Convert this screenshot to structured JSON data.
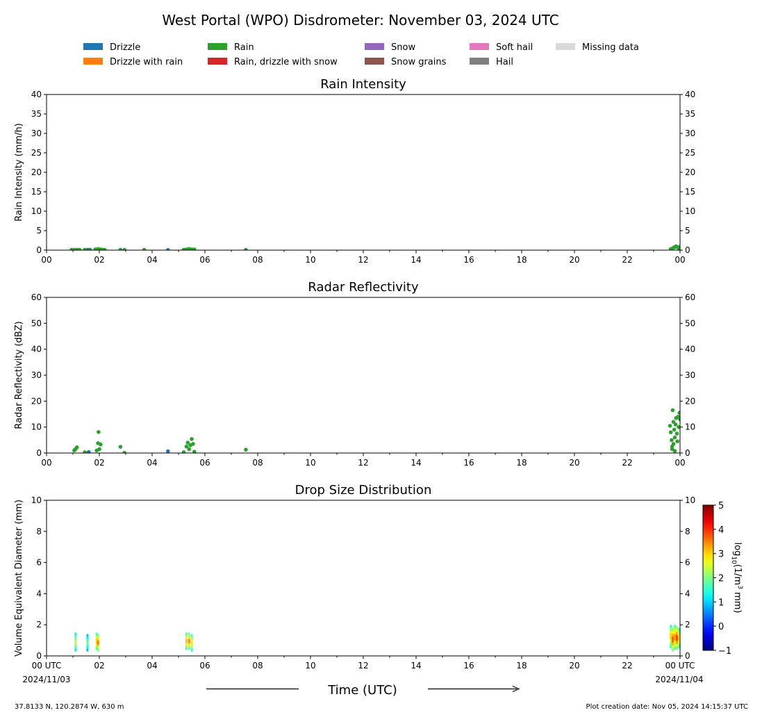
{
  "title": "West Portal (WPO) Disdrometer: November 03, 2024 UTC",
  "legend": {
    "placement": "top",
    "items": [
      {
        "label": "Drizzle",
        "color": "#1f77b4"
      },
      {
        "label": "Drizzle with rain",
        "color": "#ff7f0e"
      },
      {
        "label": "Rain",
        "color": "#2ca02c"
      },
      {
        "label": "Rain, drizzle with snow",
        "color": "#d62728"
      },
      {
        "label": "Snow",
        "color": "#9467bd"
      },
      {
        "label": "Snow grains",
        "color": "#8c564b"
      },
      {
        "label": "Soft hail",
        "color": "#e377c2"
      },
      {
        "label": "Hail",
        "color": "#7f7f7f"
      },
      {
        "label": "Missing data",
        "color": "#d9d9d9"
      }
    ]
  },
  "x_tick_labels": [
    "00",
    "02",
    "04",
    "06",
    "08",
    "10",
    "12",
    "14",
    "16",
    "18",
    "20",
    "22",
    "00"
  ],
  "bottom_x_tick_labels": [
    "00 UTC",
    "02",
    "04",
    "06",
    "08",
    "10",
    "12",
    "14",
    "16",
    "18",
    "20",
    "22",
    "00 UTC"
  ],
  "date_start": "2024/11/03",
  "date_end": "2024/11/04",
  "xlabel": "Time (UTC)",
  "footer_left": "37.8133 N, 120.2874 W, 630 m",
  "footer_right": "Plot creation date: Nov 05, 2024 14:15:37 UTC",
  "colorbar": {
    "label_prefix": "log",
    "label_sub": "10",
    "label_mid": "(1/m",
    "label_sup": "3",
    "label_suffix": " mm)",
    "range": [
      -1,
      5
    ],
    "ticks": [
      "5",
      "4",
      "3",
      "2",
      "1",
      "0",
      "−1"
    ],
    "colormap": "jet"
  },
  "chart_data": [
    {
      "type": "scatter",
      "title": "Rain Intensity",
      "ylabel": "Rain Intensity (mm/h)",
      "xlim": [
        0,
        24
      ],
      "ylim": [
        0,
        40
      ],
      "y_tick_labels": [
        "0",
        "5",
        "10",
        "15",
        "20",
        "25",
        "30",
        "35",
        "40"
      ],
      "grid": false,
      "series": [
        {
          "name": "Rain",
          "color": "#2ca02c",
          "x": [
            0.95,
            1.05,
            1.15,
            1.25,
            1.45,
            1.55,
            1.65,
            1.85,
            1.95,
            2.05,
            2.15,
            2.2,
            2.8,
            2.95,
            3.7,
            5.2,
            5.3,
            5.4,
            5.5,
            5.6,
            7.55,
            23.65,
            23.75,
            23.8,
            23.85,
            23.9,
            23.95,
            24.0
          ],
          "y": [
            0.1,
            0.1,
            0.1,
            0.1,
            0.1,
            0.1,
            0.1,
            0.2,
            0.3,
            0.2,
            0.1,
            0.1,
            0.1,
            0.1,
            0.1,
            0.1,
            0.2,
            0.3,
            0.2,
            0.2,
            0.1,
            0.3,
            0.6,
            0.8,
            1.0,
            0.7,
            0.5,
            0.9
          ]
        },
        {
          "name": "Drizzle",
          "color": "#1f77b4",
          "x": [
            1.6,
            4.6
          ],
          "y": [
            0.05,
            0.05
          ]
        }
      ]
    },
    {
      "type": "scatter",
      "title": "Radar Reflectivity",
      "ylabel": "Radar Reflectivity (dBZ)",
      "xlim": [
        0,
        24
      ],
      "ylim": [
        0,
        60
      ],
      "y_tick_labels": [
        "0",
        "10",
        "20",
        "30",
        "40",
        "50",
        "60"
      ],
      "grid": false,
      "series": [
        {
          "name": "Rain",
          "color": "#2ca02c",
          "x": [
            1.05,
            1.1,
            1.15,
            1.45,
            1.9,
            1.95,
            1.97,
            2.0,
            2.05,
            2.8,
            2.95,
            5.2,
            5.3,
            5.35,
            5.4,
            5.45,
            5.5,
            5.55,
            5.6,
            7.55,
            23.62,
            23.65,
            23.68,
            23.7,
            23.72,
            23.75,
            23.78,
            23.8,
            23.83,
            23.85,
            23.88,
            23.9,
            23.93,
            23.95,
            23.98,
            24.0,
            23.7,
            23.75,
            23.8
          ],
          "y": [
            1.0,
            1.5,
            2.2,
            0.3,
            1.0,
            3.8,
            8.1,
            1.5,
            3.3,
            2.4,
            0.1,
            0.3,
            2.5,
            4.0,
            1.5,
            3.0,
            5.4,
            3.5,
            0.5,
            1.3,
            10.5,
            8.0,
            5.0,
            2.5,
            16.5,
            12.0,
            9.0,
            6.0,
            11.0,
            13.5,
            7.5,
            4.5,
            14.0,
            10.0,
            15.5,
            13.0,
            1.5,
            3.5,
            0.8
          ]
        },
        {
          "name": "Drizzle",
          "color": "#1f77b4",
          "x": [
            1.6,
            4.6
          ],
          "y": [
            0.4,
            0.7
          ]
        }
      ]
    },
    {
      "type": "heatmap",
      "title": "Drop Size Distribution",
      "ylabel": "Volume Equivalent Diameter (mm)",
      "xlim": [
        0,
        24
      ],
      "ylim": [
        0,
        10
      ],
      "y_tick_labels": [
        "0",
        "2",
        "4",
        "6",
        "8",
        "10"
      ],
      "grid": false,
      "cells": [
        {
          "x": 1.1,
          "y0": 0.3,
          "y1": 1.5,
          "v": 2.5
        },
        {
          "x": 1.55,
          "y0": 0.3,
          "y1": 1.4,
          "v": 2.0
        },
        {
          "x": 1.9,
          "y0": 0.4,
          "y1": 1.5,
          "v": 3.2
        },
        {
          "x": 1.95,
          "y0": 0.3,
          "y1": 1.4,
          "v": 3.8
        },
        {
          "x": 5.3,
          "y0": 0.4,
          "y1": 1.5,
          "v": 3.3
        },
        {
          "x": 5.4,
          "y0": 0.4,
          "y1": 1.5,
          "v": 3.7
        },
        {
          "x": 5.5,
          "y0": 0.3,
          "y1": 1.4,
          "v": 3.1
        },
        {
          "x": 23.65,
          "y0": 0.5,
          "y1": 2.0,
          "v": 3.2
        },
        {
          "x": 23.72,
          "y0": 0.3,
          "y1": 1.8,
          "v": 4.0
        },
        {
          "x": 23.8,
          "y0": 0.4,
          "y1": 2.0,
          "v": 3.6
        },
        {
          "x": 23.88,
          "y0": 0.4,
          "y1": 1.9,
          "v": 4.2
        },
        {
          "x": 23.95,
          "y0": 0.5,
          "y1": 1.8,
          "v": 3.4
        },
        {
          "x": 24.0,
          "y0": 0.6,
          "y1": 1.6,
          "v": 3.0
        }
      ]
    }
  ]
}
